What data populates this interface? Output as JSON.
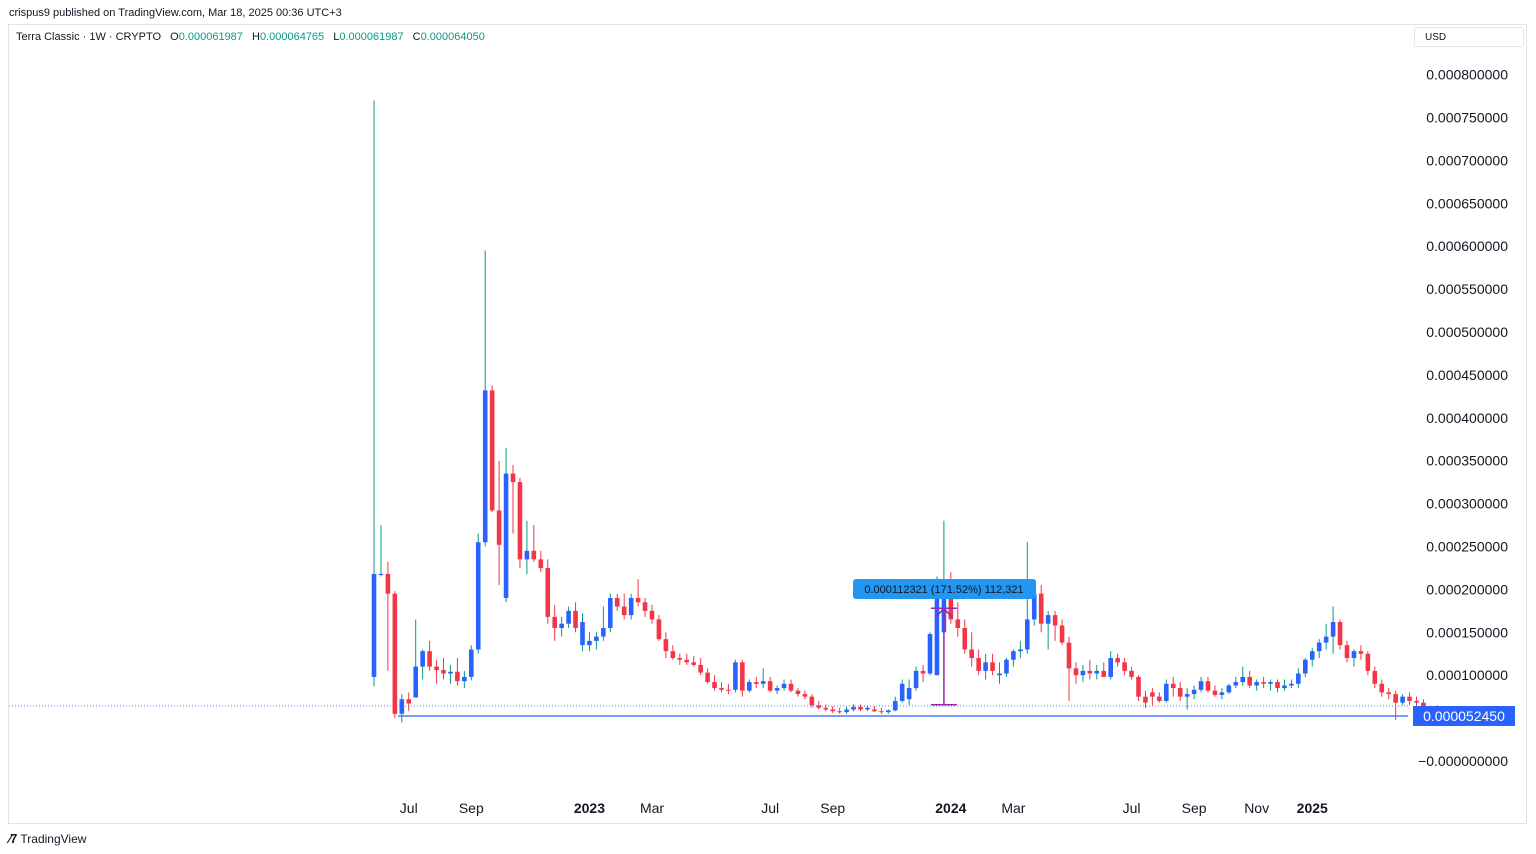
{
  "publisher": "crispus9 published on TradingView.com, Mar 18, 2025 00:36 UTC+3",
  "legend": {
    "symbol": "Terra Classic · 1W · CRYPTO",
    "open_label": "O",
    "open": "0.000061987",
    "high_label": "H",
    "high": "0.000064765",
    "low_label": "L",
    "low": "0.000061987",
    "close_label": "C",
    "close": "0.000064050"
  },
  "currency": "USD",
  "footer_brand": "TradingView",
  "colors": {
    "up": "#2962ff",
    "down": "#f23645",
    "wick_up": "#089981",
    "measure": "#9c27b0",
    "hline": "#2962ff",
    "badge": "#2196f3"
  },
  "chart_data": {
    "type": "candlestick",
    "y_ticks": [
      "0.000800000",
      "0.000750000",
      "0.000700000",
      "0.000650000",
      "0.000600000",
      "0.000550000",
      "0.000500000",
      "0.000450000",
      "0.000400000",
      "0.000350000",
      "0.000300000",
      "0.000250000",
      "0.000200000",
      "0.000150000",
      "0.000100000",
      "−0.000000000"
    ],
    "y_tick_values": [
      0.0008,
      0.00075,
      0.0007,
      0.00065,
      0.0006,
      0.00055,
      0.0005,
      0.00045,
      0.0004,
      0.00035,
      0.0003,
      0.00025,
      0.0002,
      0.00015,
      0.0001,
      0
    ],
    "x_ticks": [
      {
        "label": "Jul",
        "bar": 5,
        "bold": false
      },
      {
        "label": "Sep",
        "bar": 14,
        "bold": false
      },
      {
        "label": "2023",
        "bar": 31,
        "bold": true
      },
      {
        "label": "Mar",
        "bar": 40,
        "bold": false
      },
      {
        "label": "Jul",
        "bar": 57,
        "bold": false
      },
      {
        "label": "Sep",
        "bar": 66,
        "bold": false
      },
      {
        "label": "2024",
        "bar": 83,
        "bold": true
      },
      {
        "label": "Mar",
        "bar": 92,
        "bold": false
      },
      {
        "label": "Jul",
        "bar": 109,
        "bold": false
      },
      {
        "label": "Sep",
        "bar": 118,
        "bold": false
      },
      {
        "label": "Nov",
        "bar": 127,
        "bold": false
      },
      {
        "label": "2025",
        "bar": 135,
        "bold": true
      }
    ],
    "horizontal_line": {
      "value": 5.245e-05,
      "label": "0.000052450"
    },
    "last_price": 6.405e-05,
    "measure": {
      "from_bar": 82,
      "from_value": 6.55e-05,
      "to_value": 0.000178,
      "label": "0.000112321 (171.52%) 112,321"
    },
    "candles": [
      [
        9.8e-05,
        0.00077,
        8.7e-05,
        0.000218
      ],
      [
        0.000218,
        0.000275,
        0.000215,
        0.000218
      ],
      [
        0.000218,
        0.000232,
        0.000105,
        0.000195
      ],
      [
        0.000195,
        0.000198,
        5e-05,
        5.5e-05
      ],
      [
        5.5e-05,
        7.8e-05,
        4.5e-05,
        7.2e-05
      ],
      [
        7.2e-05,
        8e-05,
        5.8e-05,
        6.7e-05
      ],
      [
        7.4e-05,
        0.000165,
        7.4e-05,
        0.00011
      ],
      [
        0.00011,
        0.00013,
        9.5e-05,
        0.000128
      ],
      [
        0.000128,
        0.00014,
        0.000105,
        0.00011
      ],
      [
        0.00011,
        0.000118,
        9e-05,
        0.000106
      ],
      [
        0.000106,
        0.00012,
        9.5e-05,
        0.000102
      ],
      [
        0.000102,
        0.000112,
        9e-05,
        0.000104
      ],
      [
        0.000104,
        0.00012,
        8.8e-05,
        9.3e-05
      ],
      [
        9.3e-05,
        0.000105,
        8.5e-05,
        9.8e-05
      ],
      [
        9.8e-05,
        0.000135,
        9.4e-05,
        0.00013
      ],
      [
        0.00013,
        0.000265,
        0.000125,
        0.000255
      ],
      [
        0.000255,
        0.000595,
        0.00025,
        0.000432
      ],
      [
        0.000432,
        0.000438,
        0.00029,
        0.000292
      ],
      [
        0.000292,
        0.00035,
        0.000205,
        0.000252
      ],
      [
        0.00019,
        0.000365,
        0.000185,
        0.000335
      ],
      [
        0.000335,
        0.000345,
        0.000265,
        0.000325
      ],
      [
        0.000325,
        0.00033,
        0.000225,
        0.000235
      ],
      [
        0.000235,
        0.00028,
        0.000218,
        0.000245
      ],
      [
        0.000245,
        0.000275,
        0.000232,
        0.000235
      ],
      [
        0.000235,
        0.000245,
        0.00022,
        0.000225
      ],
      [
        0.000225,
        0.000235,
        0.00016,
        0.000168
      ],
      [
        0.000168,
        0.000182,
        0.00014,
        0.000155
      ],
      [
        0.000155,
        0.000168,
        0.000145,
        0.00016
      ],
      [
        0.00016,
        0.00018,
        0.000155,
        0.000175
      ],
      [
        0.000175,
        0.000185,
        0.00015,
        0.000155
      ],
      [
        0.000135,
        0.000172,
        0.000128,
        0.000162
      ],
      [
        0.000135,
        0.00015,
        0.000128,
        0.00014
      ],
      [
        0.00014,
        0.00015,
        0.00013,
        0.000145
      ],
      [
        0.000145,
        0.00018,
        0.00014,
        0.000155
      ],
      [
        0.000155,
        0.000195,
        0.00015,
        0.00019
      ],
      [
        0.00019,
        0.000195,
        0.000175,
        0.00018
      ],
      [
        0.00018,
        0.000195,
        0.000165,
        0.00017
      ],
      [
        0.00017,
        0.000195,
        0.000165,
        0.00019
      ],
      [
        0.00019,
        0.000212,
        0.00018,
        0.000185
      ],
      [
        0.000185,
        0.00019,
        0.000168,
        0.000175
      ],
      [
        0.000175,
        0.000182,
        0.00016,
        0.000165
      ],
      [
        0.000165,
        0.00017,
        0.00014,
        0.000142
      ],
      [
        0.000142,
        0.00015,
        0.00012,
        0.000128
      ],
      [
        0.000128,
        0.000135,
        0.000118,
        0.00012
      ],
      [
        0.00012,
        0.000125,
        0.000112,
        0.000118
      ],
      [
        0.000118,
        0.000125,
        0.000112,
        0.000115
      ],
      [
        0.000115,
        0.000122,
        0.00011,
        0.000112
      ],
      [
        0.000112,
        0.00012,
        0.0001,
        0.000103
      ],
      [
        0.000103,
        0.000108,
        9e-05,
        9.2e-05
      ],
      [
        9.2e-05,
        0.0001,
        8.2e-05,
        8.5e-05
      ],
      [
        8.5e-05,
        9.2e-05,
        8e-05,
        8.3e-05
      ],
      [
        8.3e-05,
        9e-05,
        7.8e-05,
        8.2e-05
      ],
      [
        8.3e-05,
        0.000118,
        8e-05,
        0.000115
      ],
      [
        0.000115,
        0.000118,
        7.5e-05,
        8.2e-05
      ],
      [
        8.2e-05,
        9.5e-05,
        8e-05,
        9.2e-05
      ],
      [
        9.2e-05,
        9.8e-05,
        8.5e-05,
        9e-05
      ],
      [
        9e-05,
        0.000108,
        8.5e-05,
        9.3e-05
      ],
      [
        9.3e-05,
        9.8e-05,
        8e-05,
        8.2e-05
      ],
      [
        8.2e-05,
        8.8e-05,
        7.8e-05,
        8.5e-05
      ],
      [
        8.5e-05,
        9.5e-05,
        8.2e-05,
        9e-05
      ],
      [
        9e-05,
        9.5e-05,
        8e-05,
        8.2e-05
      ],
      [
        8.2e-05,
        8.5e-05,
        7.5e-05,
        7.8e-05
      ],
      [
        7.8e-05,
        8.2e-05,
        7.2e-05,
        7.5e-05
      ],
      [
        7.5e-05,
        7.8e-05,
        6.2e-05,
        6.5e-05
      ],
      [
        6.5e-05,
        7e-05,
        6e-05,
        6.2e-05
      ],
      [
        6.2e-05,
        6.6e-05,
        5.8e-05,
        6e-05
      ],
      [
        6e-05,
        6.4e-05,
        5.6e-05,
        5.8e-05
      ],
      [
        5.8e-05,
        6.2e-05,
        5.5e-05,
        5.7e-05
      ],
      [
        5.7e-05,
        6.3e-05,
        5.5e-05,
        6e-05
      ],
      [
        6e-05,
        6.6e-05,
        5.8e-05,
        6.3e-05
      ],
      [
        6.3e-05,
        6.6e-05,
        5.8e-05,
        6e-05
      ],
      [
        6e-05,
        6.4e-05,
        5.8e-05,
        6.2e-05
      ],
      [
        6e-05,
        6.4e-05,
        5.7e-05,
        5.8e-05
      ],
      [
        5.8e-05,
        6.2e-05,
        5.5e-05,
        5.7e-05
      ],
      [
        5.7e-05,
        6e-05,
        5.5e-05,
        5.9e-05
      ],
      [
        5.9e-05,
        7.5e-05,
        5.8e-05,
        7e-05
      ],
      [
        7e-05,
        9.5e-05,
        6.8e-05,
        9e-05
      ],
      [
        7.2e-05,
        9.5e-05,
        6.5e-05,
        8.5e-05
      ],
      [
        8.5e-05,
        0.00011,
        8.2e-05,
        0.000105
      ],
      [
        0.000105,
        0.000112,
        9.2e-05,
        0.000102
      ],
      [
        0.000102,
        0.00015,
        0.0001,
        0.000148
      ],
      [
        0.0001,
        0.000215,
        0.0001,
        0.00019
      ],
      [
        0.00015,
        0.00028,
        0.000145,
        0.00019
      ],
      [
        0.00019,
        0.00022,
        0.00016,
        0.000165
      ],
      [
        0.000165,
        0.000185,
        0.000145,
        0.000155
      ],
      [
        0.000155,
        0.000165,
        0.000125,
        0.00013
      ],
      [
        0.00013,
        0.00015,
        0.00011,
        0.00012
      ],
      [
        0.00012,
        0.00013,
        0.0001,
        0.000105
      ],
      [
        0.000105,
        0.000125,
        9.5e-05,
        0.000115
      ],
      [
        0.000115,
        0.000125,
        0.0001,
        0.000105
      ],
      [
        0.0001,
        0.000115,
        9e-05,
        0.000102
      ],
      [
        0.000102,
        0.00012,
        9.8e-05,
        0.000118
      ],
      [
        0.000118,
        0.00013,
        0.00011,
        0.000128
      ],
      [
        0.000128,
        0.00014,
        0.00012,
        0.00013
      ],
      [
        0.00013,
        0.000255,
        0.000125,
        0.000165
      ],
      [
        0.000165,
        0.000205,
        0.000158,
        0.000195
      ],
      [
        0.000195,
        0.000205,
        0.00015,
        0.00016
      ],
      [
        0.00016,
        0.000175,
        0.00013,
        0.00017
      ],
      [
        0.00017,
        0.000175,
        0.00014,
        0.000158
      ],
      [
        0.000158,
        0.000165,
        0.000135,
        0.000138
      ],
      [
        0.000138,
        0.000145,
        7e-05,
        0.000108
      ],
      [
        0.000108,
        0.000115,
        9e-05,
        0.0001
      ],
      [
        0.0001,
        0.000112,
        9.2e-05,
        0.000105
      ],
      [
        0.000105,
        0.000118,
        9.5e-05,
        0.000102
      ],
      [
        0.000102,
        0.000112,
        9.5e-05,
        0.000105
      ],
      [
        0.000105,
        0.000115,
        9.8e-05,
        9.8e-05
      ],
      [
        9.8e-05,
        0.000128,
        9.5e-05,
        0.00012
      ],
      [
        0.00012,
        0.000125,
        0.00011,
        0.000115
      ],
      [
        0.000115,
        0.00012,
        0.0001,
        0.000105
      ],
      [
        0.000105,
        0.00011,
        9.5e-05,
        9.8e-05
      ],
      [
        9.8e-05,
        0.0001,
        7e-05,
        7.5e-05
      ],
      [
        7.5e-05,
        8.2e-05,
        6.2e-05,
        6.8e-05
      ],
      [
        8e-05,
        8.5e-05,
        6.5e-05,
        7.5e-05
      ],
      [
        7.5e-05,
        8e-05,
        6.8e-05,
        7e-05
      ],
      [
        7e-05,
        9.5e-05,
        6.8e-05,
        9e-05
      ],
      [
        9e-05,
        9.8e-05,
        7.5e-05,
        8.5e-05
      ],
      [
        8.5e-05,
        9.2e-05,
        7e-05,
        7.5e-05
      ],
      [
        7.5e-05,
        8.5e-05,
        6e-05,
        7.8e-05
      ],
      [
        7.8e-05,
        8.8e-05,
        7.2e-05,
        8.3e-05
      ],
      [
        8.3e-05,
        9.8e-05,
        8e-05,
        9.3e-05
      ],
      [
        9.3e-05,
        9.8e-05,
        8e-05,
        8.2e-05
      ],
      [
        8.2e-05,
        8.8e-05,
        7.5e-05,
        7.7e-05
      ],
      [
        7.7e-05,
        8.5e-05,
        7.2e-05,
        8e-05
      ],
      [
        8e-05,
        9e-05,
        7.8e-05,
        8.8e-05
      ],
      [
        8.8e-05,
        9.8e-05,
        8.5e-05,
        9.2e-05
      ],
      [
        9.2e-05,
        0.00011,
        8.8e-05,
        9.8e-05
      ],
      [
        9.8e-05,
        0.000105,
        8.5e-05,
        8.8e-05
      ],
      [
        8.8e-05,
        9.5e-05,
        8.2e-05,
        9.2e-05
      ],
      [
        9.2e-05,
        9.8e-05,
        8.5e-05,
        9e-05
      ],
      [
        9e-05,
        9.5e-05,
        8.2e-05,
        9.2e-05
      ],
      [
        9.2e-05,
        9.5e-05,
        8e-05,
        8.5e-05
      ],
      [
        8.5e-05,
        9.5e-05,
        8.2e-05,
        8.8e-05
      ],
      [
        8.8e-05,
        9.5e-05,
        8.5e-05,
        9e-05
      ],
      [
        9e-05,
        0.000108,
        8.5e-05,
        0.000102
      ],
      [
        0.000102,
        0.00012,
        9.8e-05,
        0.000118
      ],
      [
        0.000118,
        0.000132,
        0.00011,
        0.000128
      ],
      [
        0.000128,
        0.000142,
        0.00012,
        0.000138
      ],
      [
        0.000138,
        0.00016,
        0.00013,
        0.000145
      ],
      [
        0.000145,
        0.00018,
        0.000125,
        0.000162
      ],
      [
        0.000162,
        0.000165,
        0.00013,
        0.000135
      ],
      [
        0.000135,
        0.00014,
        0.000115,
        0.00012
      ],
      [
        0.00012,
        0.00013,
        0.00011,
        0.000128
      ],
      [
        0.000128,
        0.000135,
        0.000118,
        0.000125
      ],
      [
        0.000125,
        0.000128,
        0.0001,
        0.000105
      ],
      [
        0.000105,
        0.00011,
        8.5e-05,
        9e-05
      ],
      [
        9e-05,
        9.5e-05,
        7.5e-05,
        8e-05
      ],
      [
        8e-05,
        8.5e-05,
        7.2e-05,
        7.8e-05
      ],
      [
        7.8e-05,
        8.2e-05,
        4.8e-05,
        6.8e-05
      ],
      [
        6.8e-05,
        7.8e-05,
        6.5e-05,
        7.5e-05
      ],
      [
        7.5e-05,
        8e-05,
        6.5e-05,
        7e-05
      ],
      [
        7e-05,
        7.5e-05,
        6.2e-05,
        6.8e-05
      ],
      [
        6.8e-05,
        7.2e-05,
        5.5e-05,
        5.8e-05
      ],
      [
        5.8e-05,
        6.2e-05,
        5.5e-05,
        6.1e-05
      ],
      [
        6.2e-05,
        6.48e-05,
        6.2e-05,
        6.41e-05
      ]
    ]
  }
}
